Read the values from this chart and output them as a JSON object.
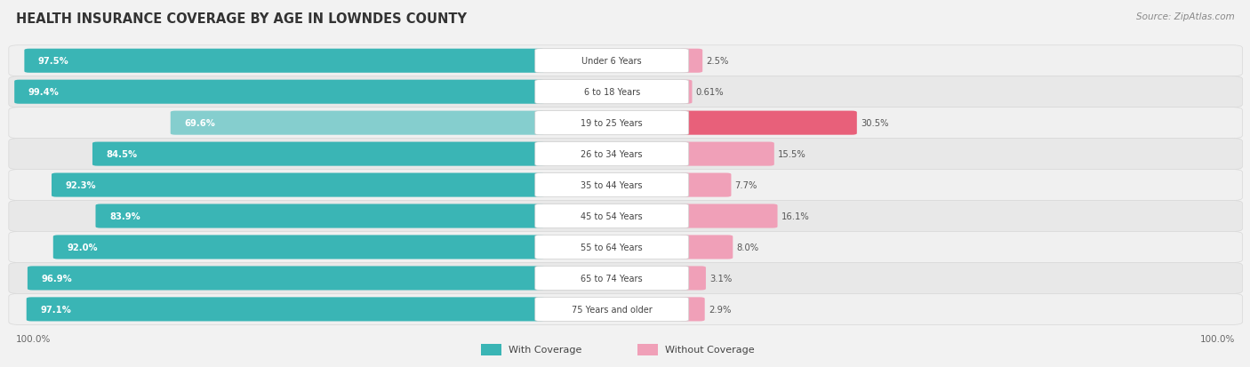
{
  "title": "HEALTH INSURANCE COVERAGE BY AGE IN LOWNDES COUNTY",
  "source": "Source: ZipAtlas.com",
  "categories": [
    "Under 6 Years",
    "6 to 18 Years",
    "19 to 25 Years",
    "26 to 34 Years",
    "35 to 44 Years",
    "45 to 54 Years",
    "55 to 64 Years",
    "65 to 74 Years",
    "75 Years and older"
  ],
  "with_coverage": [
    97.5,
    99.4,
    69.6,
    84.5,
    92.3,
    83.9,
    92.0,
    96.9,
    97.1
  ],
  "without_coverage": [
    2.5,
    0.61,
    30.5,
    15.5,
    7.7,
    16.1,
    8.0,
    3.1,
    2.9
  ],
  "with_coverage_labels": [
    "97.5%",
    "99.4%",
    "69.6%",
    "84.5%",
    "92.3%",
    "83.9%",
    "92.0%",
    "96.9%",
    "97.1%"
  ],
  "without_coverage_labels": [
    "2.5%",
    "0.61%",
    "30.5%",
    "15.5%",
    "7.7%",
    "16.1%",
    "8.0%",
    "3.1%",
    "2.9%"
  ],
  "color_with_dark": "#3ab5b5",
  "color_with_light": "#85cece",
  "color_without_dark": "#e8607a",
  "color_without_light": "#f0a0b8",
  "bg_color": "#f2f2f2",
  "row_bg_even": "#f0f0f0",
  "row_bg_odd": "#e8e8e8",
  "legend_with": "With Coverage",
  "legend_without": "Without Coverage",
  "light_threshold": 80
}
